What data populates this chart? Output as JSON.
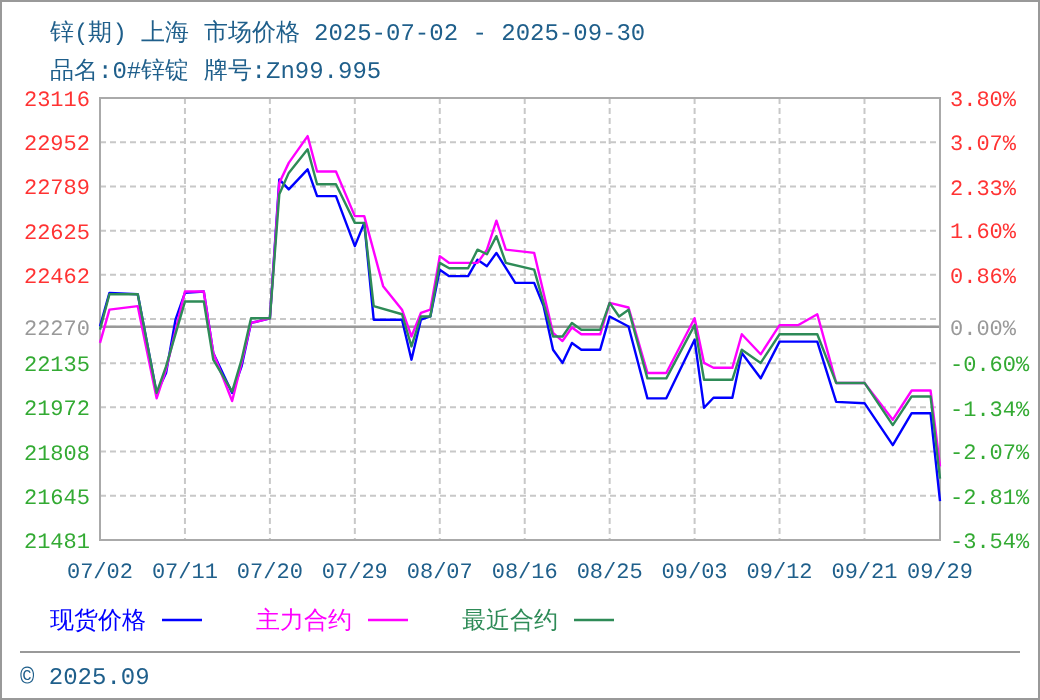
{
  "chart_data": {
    "type": "line",
    "title": "锌(期) 上海 市场价格 2025-07-02 - 2025-09-30",
    "subtitle": "品名:0#锌锭 牌号:Zn99.995",
    "annotations": [
      "© 2025.09"
    ],
    "xlim": [
      "2025-07-02",
      "2025-09-29"
    ],
    "xticks": [
      {
        "value": "2025-07-02",
        "label": "07/02"
      },
      {
        "value": "2025-07-11",
        "label": "07/11"
      },
      {
        "value": "2025-07-20",
        "label": "07/20"
      },
      {
        "value": "2025-07-29",
        "label": "07/29"
      },
      {
        "value": "2025-08-07",
        "label": "08/07"
      },
      {
        "value": "2025-08-16",
        "label": "08/16"
      },
      {
        "value": "2025-08-25",
        "label": "08/25"
      },
      {
        "value": "2025-09-03",
        "label": "09/03"
      },
      {
        "value": "2025-09-12",
        "label": "09/12"
      },
      {
        "value": "2025-09-21",
        "label": "09/21"
      },
      {
        "value": "2025-09-29",
        "label": "09/29"
      }
    ],
    "ylim": [
      21481,
      23116
    ],
    "yticks": [
      23116,
      22952,
      22789,
      22625,
      22462,
      {
        "value": 22298.5,
        "label": null
      },
      22270,
      22135,
      21972,
      21808,
      21645,
      21481
    ],
    "y2lim": [
      -3.54,
      3.8
    ],
    "y2ticks": [
      {
        "value": 3.8,
        "label": "3.80%"
      },
      {
        "value": 3.07,
        "label": "3.07%"
      },
      {
        "value": 2.33,
        "label": "2.33%"
      },
      {
        "value": 1.6,
        "label": "1.60%"
      },
      {
        "value": 0.86,
        "label": "0.86%"
      },
      {
        "value": 0,
        "label": "0.00%"
      },
      {
        "value": -0.6,
        "label": "-0.60%"
      },
      {
        "value": -1.34,
        "label": "-1.34%"
      },
      {
        "value": -2.07,
        "label": "-2.07%"
      },
      {
        "value": -2.81,
        "label": "-2.81%"
      },
      {
        "value": -3.54,
        "label": "-3.54%"
      }
    ],
    "ref_lines": [
      {
        "axis": "y",
        "value": 22270,
        "color": "#999999"
      }
    ],
    "grid": true,
    "legend": "bottom",
    "series": [
      {
        "name": "现货价格",
        "color": "#0000ff",
        "x": [
          "2025-07-02",
          "2025-07-03",
          "2025-07-06",
          "2025-07-08",
          "2025-07-09",
          "2025-07-10",
          "2025-07-11",
          "2025-07-13",
          "2025-07-14",
          "2025-07-16",
          "2025-07-17",
          "2025-07-18",
          "2025-07-20",
          "2025-07-21",
          "2025-07-22",
          "2025-07-24",
          "2025-07-25",
          "2025-07-27",
          "2025-07-29",
          "2025-07-30",
          "2025-07-31",
          "2025-08-03",
          "2025-08-04",
          "2025-08-05",
          "2025-08-06",
          "2025-08-07",
          "2025-08-08",
          "2025-08-10",
          "2025-08-11",
          "2025-08-12",
          "2025-08-13",
          "2025-08-15",
          "2025-08-17",
          "2025-08-18",
          "2025-08-19",
          "2025-08-20",
          "2025-08-21",
          "2025-08-22",
          "2025-08-24",
          "2025-08-25",
          "2025-08-27",
          "2025-08-29",
          "2025-08-31",
          "2025-09-03",
          "2025-09-04",
          "2025-09-05",
          "2025-09-07",
          "2025-09-08",
          "2025-09-10",
          "2025-09-12",
          "2025-09-16",
          "2025-09-18",
          "2025-09-21",
          "2025-09-24",
          "2025-09-26",
          "2025-09-28",
          "2025-09-29"
        ],
        "values": [
          22271,
          22395,
          22390,
          22025,
          22099,
          22296,
          22395,
          22400,
          22173,
          22025,
          22123,
          22284,
          22301,
          22815,
          22778,
          22852,
          22753,
          22753,
          22568,
          22654,
          22296,
          22296,
          22148,
          22296,
          22308,
          22481,
          22457,
          22457,
          22518,
          22494,
          22543,
          22432,
          22432,
          22346,
          22185,
          22136,
          22210,
          22185,
          22185,
          22308,
          22271,
          22005,
          22005,
          22222,
          21970,
          22007,
          22007,
          22173,
          22079,
          22215,
          22215,
          21992,
          21987,
          21832,
          21950,
          21950,
          21625
        ]
      },
      {
        "name": "主力合约",
        "color": "#ff00ff",
        "x": [
          "2025-07-02",
          "2025-07-03",
          "2025-07-06",
          "2025-07-08",
          "2025-07-09",
          "2025-07-11",
          "2025-07-13",
          "2025-07-14",
          "2025-07-16",
          "2025-07-17",
          "2025-07-18",
          "2025-07-20",
          "2025-07-21",
          "2025-07-22",
          "2025-07-24",
          "2025-07-25",
          "2025-07-27",
          "2025-07-29",
          "2025-07-30",
          "2025-08-01",
          "2025-08-03",
          "2025-08-04",
          "2025-08-05",
          "2025-08-06",
          "2025-08-07",
          "2025-08-08",
          "2025-08-11",
          "2025-08-12",
          "2025-08-13",
          "2025-08-14",
          "2025-08-17",
          "2025-08-19",
          "2025-08-20",
          "2025-08-21",
          "2025-08-22",
          "2025-08-24",
          "2025-08-25",
          "2025-08-27",
          "2025-08-29",
          "2025-08-31",
          "2025-09-03",
          "2025-09-04",
          "2025-09-05",
          "2025-09-07",
          "2025-09-08",
          "2025-09-10",
          "2025-09-12",
          "2025-09-14",
          "2025-09-16",
          "2025-09-18",
          "2025-09-21",
          "2025-09-24",
          "2025-09-26",
          "2025-09-28",
          "2025-09-29"
        ],
        "values": [
          22210,
          22333,
          22346,
          22005,
          22111,
          22400,
          22400,
          22173,
          21995,
          22136,
          22284,
          22301,
          22802,
          22876,
          22975,
          22844,
          22844,
          22679,
          22679,
          22420,
          22333,
          22234,
          22321,
          22333,
          22531,
          22506,
          22506,
          22555,
          22662,
          22555,
          22543,
          22247,
          22217,
          22267,
          22242,
          22242,
          22358,
          22341,
          22099,
          22099,
          22301,
          22136,
          22118,
          22118,
          22242,
          22168,
          22276,
          22276,
          22316,
          22062,
          22062,
          21926,
          22034,
          22034,
          21753
        ]
      },
      {
        "name": "最近合约",
        "color": "#2e8b57",
        "x": [
          "2025-07-02",
          "2025-07-03",
          "2025-07-06",
          "2025-07-08",
          "2025-07-09",
          "2025-07-11",
          "2025-07-13",
          "2025-07-14",
          "2025-07-16",
          "2025-07-17",
          "2025-07-18",
          "2025-07-20",
          "2025-07-21",
          "2025-07-22",
          "2025-07-24",
          "2025-07-25",
          "2025-07-27",
          "2025-07-29",
          "2025-07-30",
          "2025-07-31",
          "2025-08-03",
          "2025-08-04",
          "2025-08-05",
          "2025-08-06",
          "2025-08-07",
          "2025-08-08",
          "2025-08-10",
          "2025-08-11",
          "2025-08-12",
          "2025-08-13",
          "2025-08-14",
          "2025-08-17",
          "2025-08-19",
          "2025-08-20",
          "2025-08-21",
          "2025-08-22",
          "2025-08-24",
          "2025-08-25",
          "2025-08-26",
          "2025-08-27",
          "2025-08-29",
          "2025-08-31",
          "2025-09-03",
          "2025-09-04",
          "2025-09-07",
          "2025-09-08",
          "2025-09-10",
          "2025-09-12",
          "2025-09-16",
          "2025-09-18",
          "2025-09-21",
          "2025-09-24",
          "2025-09-26",
          "2025-09-28",
          "2025-09-29"
        ],
        "values": [
          22259,
          22390,
          22390,
          22025,
          22123,
          22363,
          22363,
          22148,
          22030,
          22148,
          22301,
          22301,
          22760,
          22839,
          22926,
          22797,
          22797,
          22654,
          22654,
          22346,
          22316,
          22197,
          22308,
          22308,
          22506,
          22486,
          22486,
          22555,
          22538,
          22605,
          22506,
          22481,
          22234,
          22234,
          22284,
          22259,
          22259,
          22358,
          22308,
          22333,
          22079,
          22079,
          22276,
          22074,
          22074,
          22185,
          22136,
          22242,
          22242,
          22062,
          22062,
          21906,
          22012,
          22012,
          21708
        ]
      }
    ]
  }
}
